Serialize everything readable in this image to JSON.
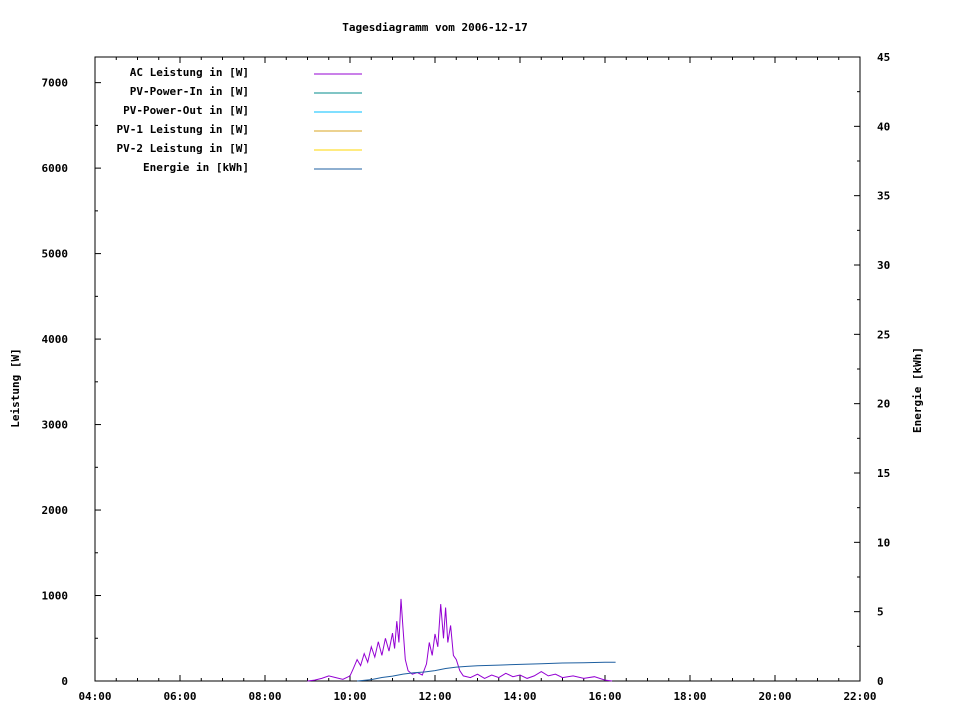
{
  "chart_data": {
    "type": "line",
    "title": "Tagesdiagramm vom 2006-12-17",
    "ylabel": "Leistung [W]",
    "y2label": "Energie [kWh]",
    "xlim": [
      "04:00",
      "22:00"
    ],
    "ylim": [
      0,
      7300
    ],
    "y2lim": [
      0,
      45
    ],
    "x_ticks": [
      "04:00",
      "06:00",
      "08:00",
      "10:00",
      "12:00",
      "14:00",
      "16:00",
      "18:00",
      "20:00",
      "22:00"
    ],
    "y_ticks": [
      0,
      1000,
      2000,
      3000,
      4000,
      5000,
      6000,
      7000
    ],
    "y2_ticks": [
      0,
      5,
      10,
      15,
      20,
      25,
      30,
      35,
      40,
      45
    ],
    "legend_position": "top-left",
    "grid": false,
    "series": [
      {
        "name": "AC Leistung in [W]",
        "color": "#9400d3",
        "axis": "y",
        "points": [
          [
            "09:00",
            0
          ],
          [
            "09:10",
            10
          ],
          [
            "09:20",
            30
          ],
          [
            "09:30",
            60
          ],
          [
            "09:40",
            40
          ],
          [
            "09:50",
            20
          ],
          [
            "10:00",
            60
          ],
          [
            "10:05",
            150
          ],
          [
            "10:10",
            250
          ],
          [
            "10:15",
            180
          ],
          [
            "10:20",
            320
          ],
          [
            "10:25",
            220
          ],
          [
            "10:30",
            400
          ],
          [
            "10:35",
            280
          ],
          [
            "10:40",
            460
          ],
          [
            "10:45",
            300
          ],
          [
            "10:50",
            500
          ],
          [
            "10:55",
            350
          ],
          [
            "11:00",
            560
          ],
          [
            "11:03",
            380
          ],
          [
            "11:06",
            700
          ],
          [
            "11:09",
            450
          ],
          [
            "11:12",
            960
          ],
          [
            "11:15",
            600
          ],
          [
            "11:18",
            250
          ],
          [
            "11:22",
            120
          ],
          [
            "11:28",
            80
          ],
          [
            "11:35",
            100
          ],
          [
            "11:42",
            70
          ],
          [
            "11:48",
            200
          ],
          [
            "11:52",
            450
          ],
          [
            "11:56",
            300
          ],
          [
            "12:00",
            550
          ],
          [
            "12:04",
            400
          ],
          [
            "12:08",
            900
          ],
          [
            "12:12",
            500
          ],
          [
            "12:15",
            860
          ],
          [
            "12:18",
            450
          ],
          [
            "12:22",
            650
          ],
          [
            "12:26",
            300
          ],
          [
            "12:30",
            250
          ],
          [
            "12:35",
            120
          ],
          [
            "12:40",
            60
          ],
          [
            "12:50",
            40
          ],
          [
            "13:00",
            80
          ],
          [
            "13:10",
            30
          ],
          [
            "13:20",
            70
          ],
          [
            "13:30",
            40
          ],
          [
            "13:40",
            90
          ],
          [
            "13:50",
            50
          ],
          [
            "14:00",
            70
          ],
          [
            "14:10",
            30
          ],
          [
            "14:20",
            60
          ],
          [
            "14:30",
            110
          ],
          [
            "14:40",
            60
          ],
          [
            "14:50",
            80
          ],
          [
            "15:00",
            40
          ],
          [
            "15:15",
            60
          ],
          [
            "15:30",
            30
          ],
          [
            "15:45",
            50
          ],
          [
            "16:00",
            10
          ],
          [
            "16:10",
            0
          ]
        ]
      },
      {
        "name": "PV-Power-In in [W]",
        "color": "#008b8b",
        "axis": "y",
        "points": []
      },
      {
        "name": "PV-Power-Out in [W]",
        "color": "#00bfff",
        "axis": "y",
        "points": []
      },
      {
        "name": "PV-1 Leistung in [W]",
        "color": "#daa520",
        "axis": "y",
        "points": []
      },
      {
        "name": "PV-2 Leistung in [W]",
        "color": "#ffd700",
        "axis": "y",
        "points": []
      },
      {
        "name": "Energie in [kWh]",
        "color": "#1e5fa0",
        "axis": "y2",
        "points": [
          [
            "10:10",
            0
          ],
          [
            "10:30",
            0.1
          ],
          [
            "10:45",
            0.25
          ],
          [
            "11:00",
            0.35
          ],
          [
            "11:15",
            0.5
          ],
          [
            "11:30",
            0.6
          ],
          [
            "11:45",
            0.65
          ],
          [
            "12:00",
            0.75
          ],
          [
            "12:15",
            0.9
          ],
          [
            "12:30",
            1.0
          ],
          [
            "12:45",
            1.05
          ],
          [
            "13:00",
            1.1
          ],
          [
            "13:30",
            1.15
          ],
          [
            "14:00",
            1.2
          ],
          [
            "14:30",
            1.25
          ],
          [
            "15:00",
            1.3
          ],
          [
            "15:30",
            1.32
          ],
          [
            "16:00",
            1.35
          ],
          [
            "16:15",
            1.35
          ]
        ]
      }
    ]
  }
}
